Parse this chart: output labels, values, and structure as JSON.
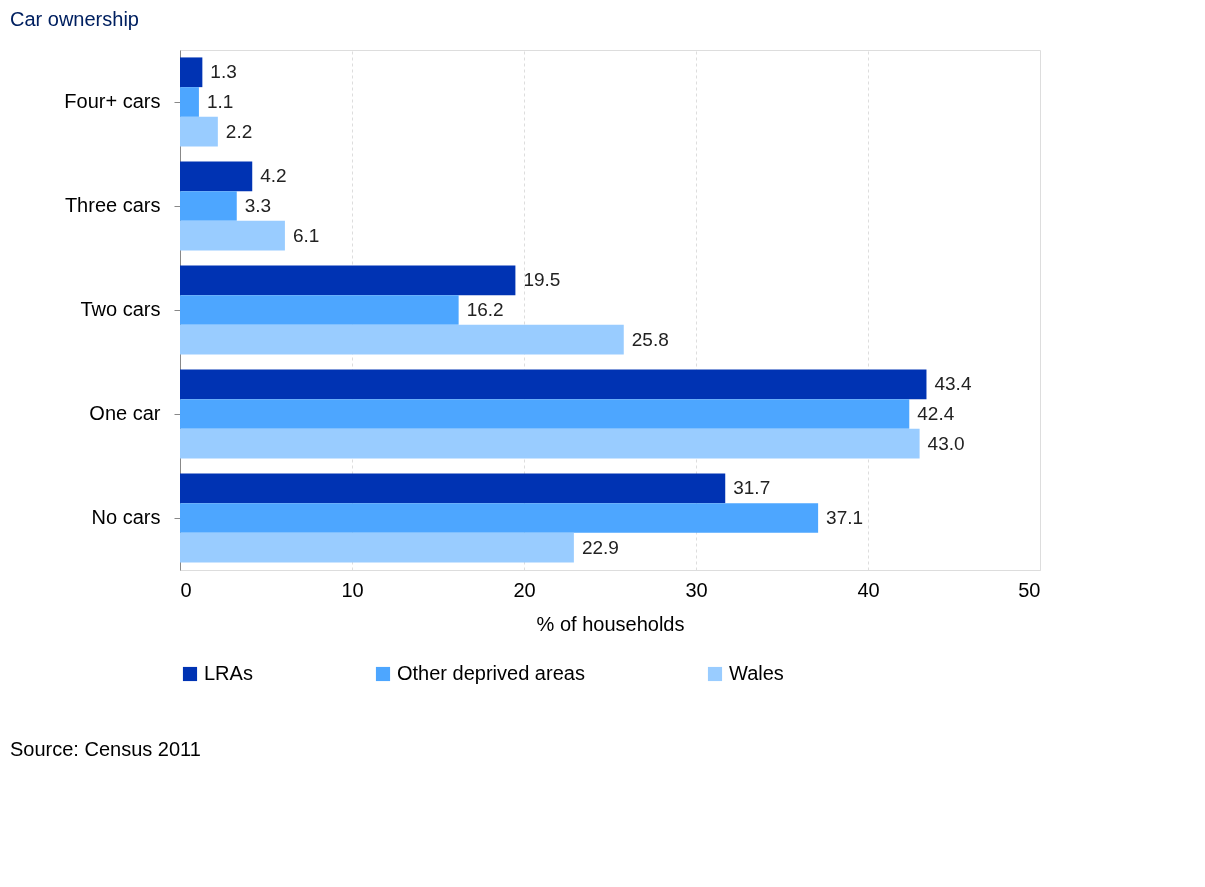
{
  "chart_data": {
    "type": "bar",
    "orientation": "horizontal",
    "title": "Car ownership",
    "xlabel": "% of households",
    "categories": [
      "Four+ cars",
      "Three cars",
      "Two cars",
      "One car",
      "No cars"
    ],
    "series": [
      {
        "name": "LRAs",
        "color": "#0033b3",
        "values": [
          1.3,
          4.2,
          19.5,
          43.4,
          31.7
        ],
        "value_labels": [
          "1.3",
          "4.2",
          "19.5",
          "43.4",
          "31.7"
        ]
      },
      {
        "name": "Other deprived areas",
        "color": "#4da6ff",
        "values": [
          1.1,
          3.3,
          16.2,
          42.4,
          37.1
        ],
        "value_labels": [
          "1.1",
          "3.3",
          "16.2",
          "42.4",
          "37.1"
        ]
      },
      {
        "name": "Wales",
        "color": "#99ccff",
        "values": [
          2.2,
          6.1,
          25.8,
          43.0,
          22.9
        ],
        "value_labels": [
          "2.2",
          "6.1",
          "25.8",
          "43.0",
          "22.9"
        ]
      }
    ],
    "xlim": [
      0,
      50
    ],
    "xticks": [
      0,
      10,
      20,
      30,
      40,
      50
    ],
    "grid": "x",
    "legend": "bottom",
    "annotations": [
      "Source: Census 2011"
    ]
  }
}
